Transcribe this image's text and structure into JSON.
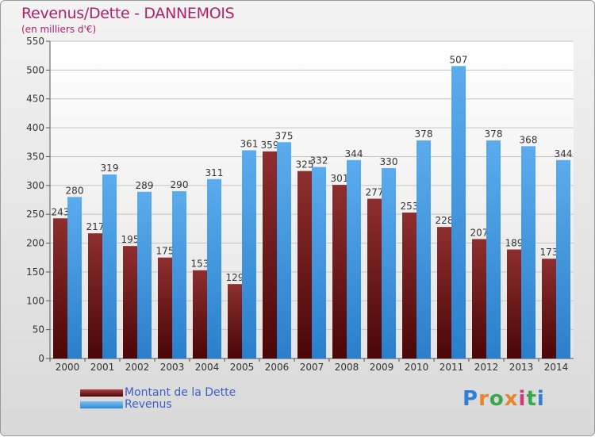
{
  "chart_data": {
    "type": "bar",
    "title": "Revenus/Dette - DANNEMOIS",
    "subtitle": "(en milliers d'€)",
    "categories": [
      "2000",
      "2001",
      "2002",
      "2003",
      "2004",
      "2005",
      "2006",
      "2007",
      "2008",
      "2009",
      "2010",
      "2011",
      "2012",
      "2013",
      "2014"
    ],
    "series": [
      {
        "name": "Montant de la Dette",
        "color": "#7a1a1a",
        "values": [
          243,
          217,
          195,
          175,
          153,
          129,
          359,
          325,
          301,
          277,
          253,
          228,
          207,
          189,
          173
        ]
      },
      {
        "name": "Revenus",
        "color": "#3a97e2",
        "values": [
          280,
          319,
          289,
          290,
          311,
          361,
          375,
          332,
          344,
          330,
          378,
          507,
          378,
          368,
          344
        ]
      }
    ],
    "ylim": [
      0,
      550
    ],
    "yticks": [
      0,
      50,
      100,
      150,
      200,
      250,
      300,
      350,
      400,
      450,
      500,
      550
    ],
    "grid": true,
    "legend_position": "bottom-left"
  },
  "logo": {
    "text": "Proxiti"
  }
}
